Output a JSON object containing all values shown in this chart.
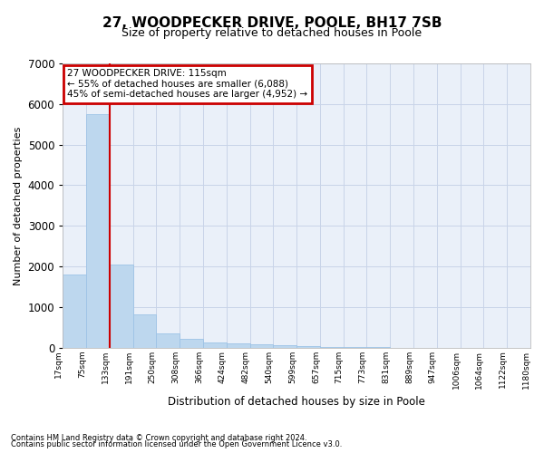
{
  "title1": "27, WOODPECKER DRIVE, POOLE, BH17 7SB",
  "title2": "Size of property relative to detached houses in Poole",
  "xlabel": "Distribution of detached houses by size in Poole",
  "ylabel": "Number of detached properties",
  "footnote1": "Contains HM Land Registry data © Crown copyright and database right 2024.",
  "footnote2": "Contains public sector information licensed under the Open Government Licence v3.0.",
  "annotation_line1": "27 WOODPECKER DRIVE: 115sqm",
  "annotation_line2": "← 55% of detached houses are smaller (6,088)",
  "annotation_line3": "45% of semi-detached houses are larger (4,952) →",
  "bar_values": [
    1800,
    5750,
    2050,
    820,
    360,
    220,
    130,
    100,
    95,
    70,
    40,
    10,
    10,
    10,
    5,
    5,
    5,
    5,
    5,
    5
  ],
  "bar_labels": [
    "17sqm",
    "75sqm",
    "133sqm",
    "191sqm",
    "250sqm",
    "308sqm",
    "366sqm",
    "424sqm",
    "482sqm",
    "540sqm",
    "599sqm",
    "657sqm",
    "715sqm",
    "773sqm",
    "831sqm",
    "889sqm",
    "947sqm",
    "1006sqm",
    "1064sqm",
    "1122sqm",
    "1180sqm"
  ],
  "bar_color": "#bdd7ee",
  "bar_edge_color": "#9dc3e6",
  "red_line_x": 2,
  "bg_color": "#eaf0f9",
  "grid_color": "#c8d4e8",
  "annotation_box_color": "#cc0000",
  "ylim": [
    0,
    7000
  ],
  "yticks": [
    0,
    1000,
    2000,
    3000,
    4000,
    5000,
    6000,
    7000
  ]
}
